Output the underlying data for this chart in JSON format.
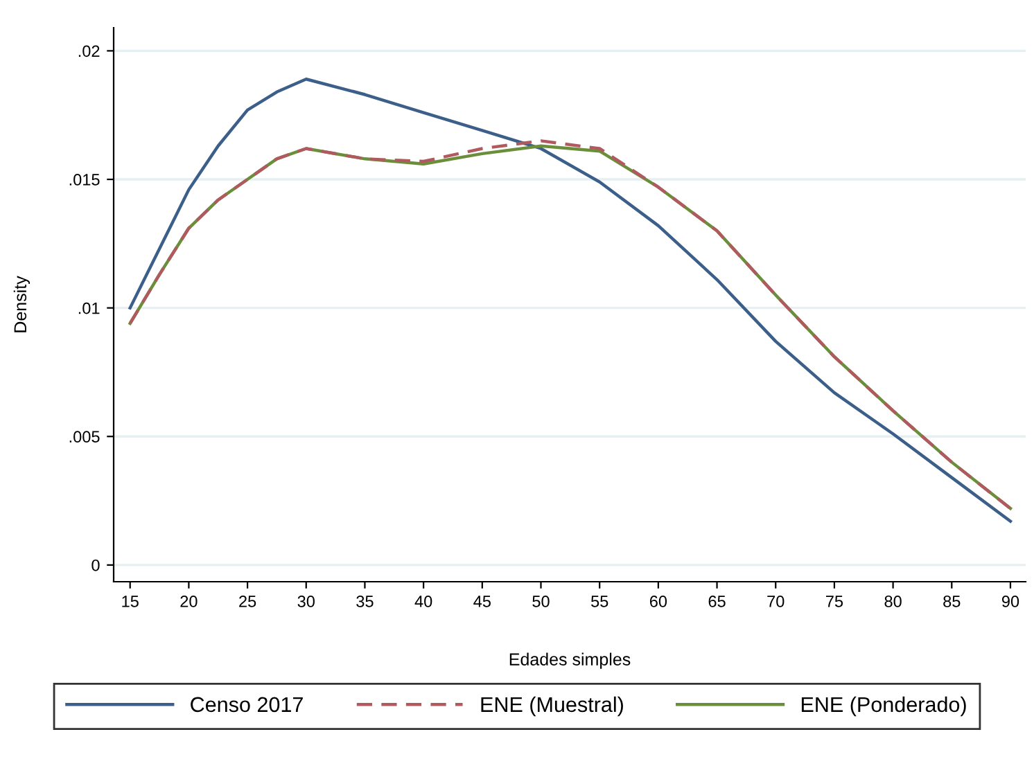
{
  "chart_data": {
    "type": "line",
    "xlabel": "Edades simples",
    "ylabel": "Density",
    "x": [
      15,
      17.5,
      20,
      22.5,
      25,
      27.5,
      30,
      35,
      40,
      45,
      50,
      55,
      60,
      65,
      70,
      75,
      80,
      85,
      90
    ],
    "series": [
      {
        "name": "Censo 2017",
        "color": "#3c5f8a",
        "line_style": "solid",
        "values": [
          0.01,
          0.0123,
          0.0146,
          0.0163,
          0.0177,
          0.0184,
          0.0189,
          0.0183,
          0.0176,
          0.0169,
          0.0162,
          0.0149,
          0.0132,
          0.0111,
          0.0087,
          0.0067,
          0.0051,
          0.0034,
          0.0017
        ]
      },
      {
        "name": "ENE (Muestral)",
        "color": "#b05a5f",
        "line_style": "dashed",
        "values": [
          0.0094,
          0.0113,
          0.0131,
          0.0142,
          0.015,
          0.0158,
          0.0162,
          0.0158,
          0.0157,
          0.0162,
          0.0165,
          0.0162,
          0.0147,
          0.013,
          0.0105,
          0.0081,
          0.006,
          0.004,
          0.0022
        ]
      },
      {
        "name": "ENE (Ponderado)",
        "color": "#6b8e3a",
        "line_style": "solid",
        "values": [
          0.0094,
          0.0113,
          0.0131,
          0.0142,
          0.015,
          0.0158,
          0.0162,
          0.0158,
          0.0156,
          0.016,
          0.0163,
          0.0161,
          0.0147,
          0.013,
          0.0105,
          0.0081,
          0.006,
          0.004,
          0.0022
        ]
      }
    ],
    "xlim": [
      13.6,
      91.3
    ],
    "ylim": [
      -0.00065,
      0.0209
    ],
    "xticks": [
      15,
      20,
      25,
      30,
      35,
      40,
      45,
      50,
      55,
      60,
      65,
      70,
      75,
      80,
      85,
      90
    ],
    "yticks": [
      0,
      {
        "value": 0.005,
        "label": ".005"
      },
      {
        "value": 0.01,
        "label": ".01"
      },
      {
        "value": 0.015,
        "label": ".015"
      },
      {
        "value": 0.02,
        "label": ".02"
      }
    ],
    "grid": "y",
    "legend": "bottom"
  }
}
